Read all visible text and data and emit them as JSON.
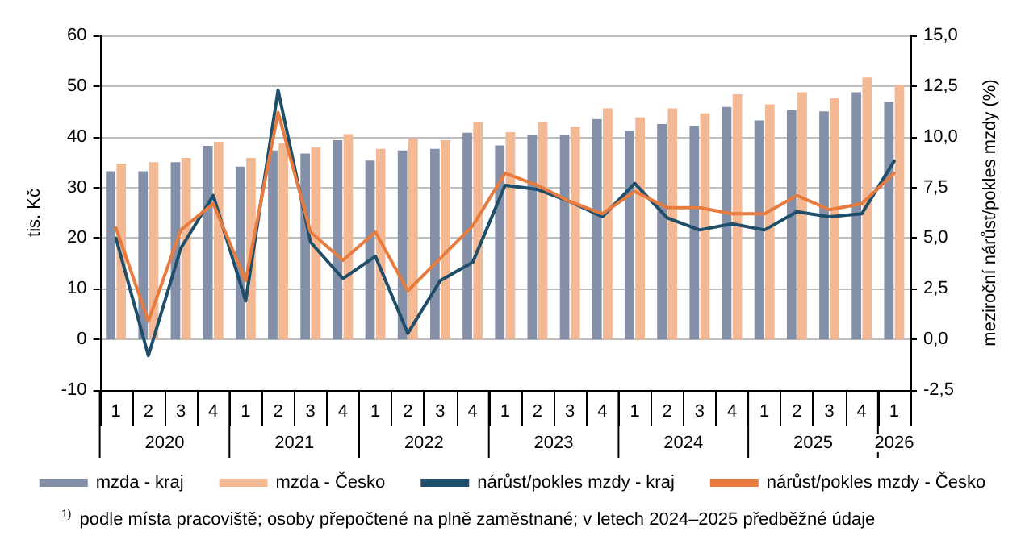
{
  "chart_data": {
    "type": "bar",
    "ylabel": "tis. Kč",
    "y2label": "meziroční nárůst/pokles mzdy (%)",
    "categories": [
      "1",
      "2",
      "3",
      "4",
      "1",
      "2",
      "3",
      "4",
      "1",
      "2",
      "3",
      "4",
      "1",
      "2",
      "3",
      "4",
      "1",
      "2",
      "3",
      "4",
      "1",
      "2",
      "3",
      "4",
      "1"
    ],
    "series": [
      {
        "name": "mzda - kraj",
        "color": "#8490a8",
        "values": [
          33.2,
          33.2,
          35.0,
          38.2,
          34.1,
          37.3,
          36.7,
          39.3,
          35.3,
          37.3,
          37.6,
          40.8,
          38.3,
          40.3,
          40.3,
          43.5,
          41.2,
          42.5,
          42.2,
          45.9,
          43.2,
          45.3,
          45.0,
          48.8,
          46.9
        ]
      },
      {
        "name": "mzda - Česko",
        "color": "#f2b994",
        "values": [
          34.7,
          35.0,
          35.8,
          39.0,
          35.8,
          38.7,
          37.9,
          40.5,
          37.6,
          39.6,
          39.3,
          42.8,
          40.9,
          42.9,
          42.0,
          45.6,
          43.8,
          45.6,
          44.6,
          48.4,
          46.4,
          48.8,
          47.6,
          51.7,
          50.2
        ]
      },
      {
        "name": "nárůst/pokles mzdy - kraj",
        "type": "line",
        "axis": "y2",
        "color": "#1f4e6b",
        "values": [
          5.0,
          -0.8,
          4.5,
          7.1,
          1.9,
          12.3,
          4.8,
          3.0,
          4.1,
          0.3,
          2.9,
          3.8,
          7.6,
          7.4,
          6.8,
          6.05,
          7.7,
          6.0,
          5.4,
          5.7,
          5.4,
          6.3,
          6.05,
          6.2,
          8.8
        ]
      },
      {
        "name": "nárůst/pokles mzdy - Česko",
        "type": "line",
        "axis": "y2",
        "color": "#e87b3e",
        "values": [
          5.5,
          0.9,
          5.4,
          6.7,
          2.9,
          11.2,
          5.3,
          3.9,
          5.3,
          2.4,
          4.0,
          5.6,
          8.2,
          7.6,
          6.8,
          6.2,
          7.3,
          6.5,
          6.5,
          6.2,
          6.2,
          7.1,
          6.4,
          6.7,
          8.2
        ]
      }
    ],
    "ylim": [
      -10,
      60
    ],
    "yticks": [
      -10,
      0,
      10,
      20,
      30,
      40,
      50,
      60
    ],
    "y2lim": [
      -2.5,
      15
    ],
    "y2ticks": [
      {
        "value": -2.5,
        "label": "-2,5"
      },
      {
        "value": 0,
        "label": "0,0"
      },
      {
        "value": 2.5,
        "label": "2,5"
      },
      {
        "value": 5,
        "label": "5,0"
      },
      {
        "value": 7.5,
        "label": "7,5"
      },
      {
        "value": 10,
        "label": "10,0"
      },
      {
        "value": 12.5,
        "label": "12,5"
      },
      {
        "value": 15,
        "label": "15,0"
      }
    ],
    "annotations": [
      "2020",
      "2021",
      "2022",
      "2023",
      "2024",
      "2025",
      "2026",
      "$^{1)}$ podle místa pracoviště; osoby přepočtené na plně zaměstnané; v letech 2024–2025 předběžné údaje"
    ],
    "grid": "y",
    "legend": "bottom",
    "marker": "none",
    "line_style": "solid"
  }
}
